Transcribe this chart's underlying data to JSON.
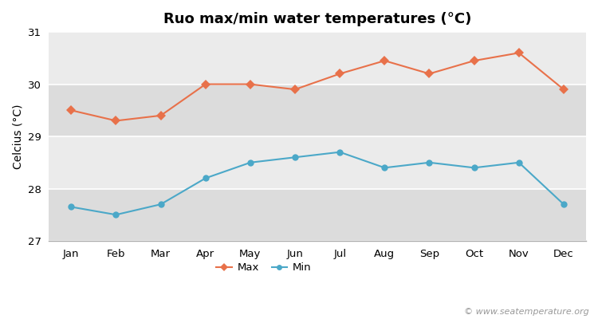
{
  "title": "Ruo max/min water temperatures (°C)",
  "ylabel": "Celcius (°C)",
  "months": [
    "Jan",
    "Feb",
    "Mar",
    "Apr",
    "May",
    "Jun",
    "Jul",
    "Aug",
    "Sep",
    "Oct",
    "Nov",
    "Dec"
  ],
  "max_temps": [
    29.5,
    29.3,
    29.4,
    30.0,
    30.0,
    29.9,
    30.2,
    30.45,
    30.2,
    30.45,
    30.6,
    29.9
  ],
  "min_temps": [
    27.65,
    27.5,
    27.7,
    28.2,
    28.5,
    28.6,
    28.7,
    28.4,
    28.5,
    28.4,
    28.5,
    27.7
  ],
  "max_color": "#e8714a",
  "min_color": "#4ba8c8",
  "stripe_light": "#ebebeb",
  "stripe_dark": "#dcdcdc",
  "ylim": [
    27.0,
    31.0
  ],
  "yticks": [
    27,
    28,
    29,
    30,
    31
  ],
  "watermark": "© www.seatemperature.org",
  "legend_labels": [
    "Max",
    "Min"
  ],
  "title_fontsize": 13,
  "axis_fontsize": 10,
  "tick_fontsize": 9.5,
  "watermark_fontsize": 8
}
